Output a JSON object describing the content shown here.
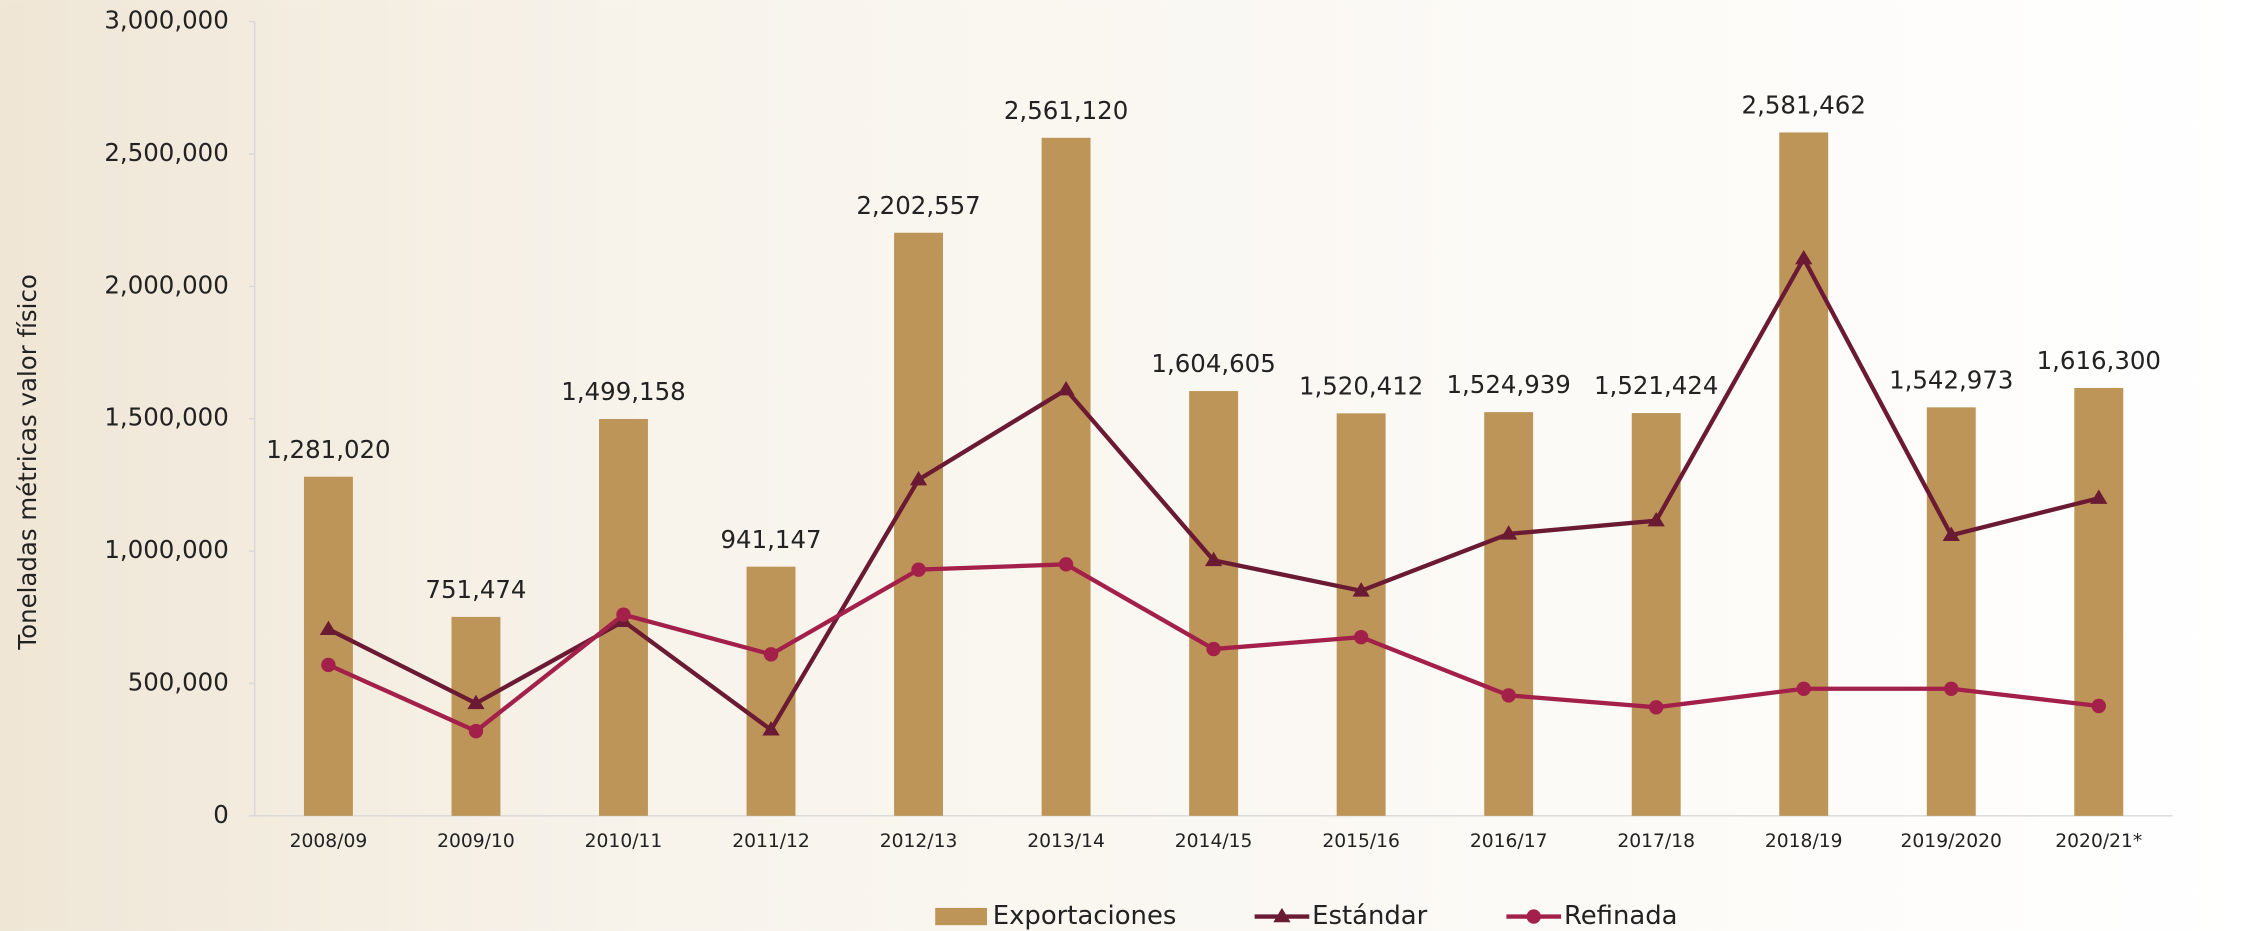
{
  "chart_data": {
    "type": "bar",
    "y_label": "Toneladas métricas valor físico",
    "categories": [
      "2008/09",
      "2009/10",
      "2010/11",
      "2011/12",
      "2012/13",
      "2013/14",
      "2014/15",
      "2015/16",
      "2016/17",
      "2017/18",
      "2018/19",
      "2019/2020",
      "2020/21*"
    ],
    "series": [
      {
        "name": "Exportaciones",
        "type": "bar",
        "color": "#bd9558",
        "values": [
          1281020,
          751474,
          1499158,
          941147,
          2202557,
          2561120,
          1604605,
          1520412,
          1524939,
          1521424,
          2581462,
          1542973,
          1616300
        ],
        "value_labels": [
          "1,281,020",
          "751,474",
          "1,499,158",
          "941,147",
          "2,202,557",
          "2,561,120",
          "1,604,605",
          "1,520,412",
          "1,524,939",
          "1,521,424",
          "2,581,462",
          "1,542,973",
          "1,616,300"
        ]
      },
      {
        "name": "Estándar",
        "type": "line",
        "marker": "triangle",
        "color": "#6b1a33",
        "values": [
          705000,
          425000,
          735000,
          325000,
          1270000,
          1610000,
          965000,
          850000,
          1065000,
          1115000,
          2105000,
          1060000,
          1200000
        ]
      },
      {
        "name": "Refinada",
        "type": "line",
        "marker": "circle",
        "color": "#a3204a",
        "values": [
          570000,
          320000,
          760000,
          610000,
          930000,
          950000,
          630000,
          675000,
          455000,
          410000,
          480000,
          480000,
          415000
        ]
      }
    ],
    "ylim": [
      0,
      3000000
    ],
    "yticks": [
      0,
      {
        "value": 500000,
        "label": "500,000"
      },
      {
        "value": 1000000,
        "label": "1,000,000"
      },
      {
        "value": 1500000,
        "label": "1,500,000"
      },
      {
        "value": 2000000,
        "label": "2,000,000"
      },
      {
        "value": 2500000,
        "label": "2,500,000"
      },
      {
        "value": 3000000,
        "label": "3,000,000"
      }
    ],
    "grid": false,
    "legend": "bottom"
  }
}
